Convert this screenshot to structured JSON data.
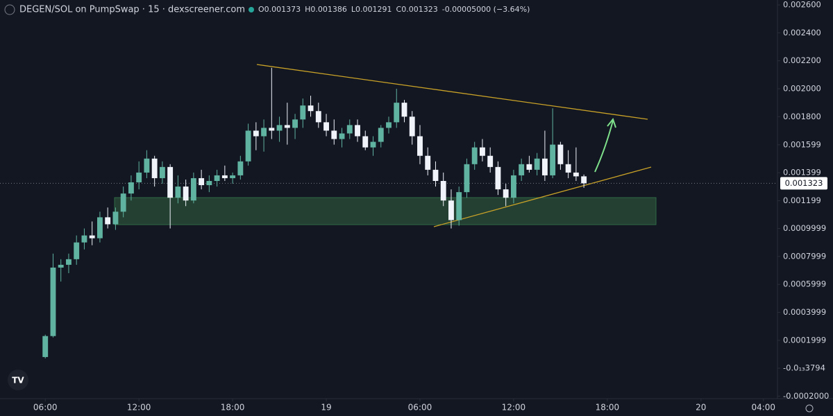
{
  "chart_data": {
    "type": "candlestick",
    "title": "DEGEN/SOL on PumpSwap · 15 · dexscreener.com",
    "ohlc_text": [
      "O0.001373",
      "H0.001386",
      "L0.001291",
      "C0.001323",
      "-0.00005000 (−3.64%)"
    ],
    "up_color": "#5fb3a0",
    "down_color": "#f0f3fa",
    "last_price": 0.001323,
    "xlim": [
      3.1,
      52.9
    ],
    "xticks": [
      {
        "value": 6,
        "label": "06:00"
      },
      {
        "value": 12,
        "label": "12:00"
      },
      {
        "value": 18,
        "label": "18:00"
      },
      {
        "value": 24,
        "label": "19"
      },
      {
        "value": 30,
        "label": "06:00"
      },
      {
        "value": 36,
        "label": "12:00"
      },
      {
        "value": 42,
        "label": "18:00"
      },
      {
        "value": 48,
        "label": "20"
      },
      {
        "value": 52,
        "label": "04:00"
      }
    ],
    "ylim": [
      -0.000218,
      0.002635
    ],
    "yticks": [
      {
        "value": 0.0026,
        "label": "0.002600"
      },
      {
        "value": 0.0024,
        "label": "0.002400"
      },
      {
        "value": 0.0022,
        "label": "0.002200"
      },
      {
        "value": 0.002,
        "label": "0.002000"
      },
      {
        "value": 0.0018,
        "label": "0.001800"
      },
      {
        "value": 0.001599,
        "label": "0.001599"
      },
      {
        "value": 0.001399,
        "label": "0.001399"
      },
      {
        "value": 0.001199,
        "label": "0.001199"
      },
      {
        "value": 0.0009999,
        "label": "0.0009999"
      },
      {
        "value": 0.0007999,
        "label": "0.0007999"
      },
      {
        "value": 0.0005999,
        "label": "0.0005999"
      },
      {
        "value": 0.0003999,
        "label": "0.0003999"
      },
      {
        "value": 0.0001999,
        "label": "0.0001999"
      },
      {
        "value": -3.794e-14,
        "label": "-0.0₁₃3794"
      },
      {
        "value": -0.0002,
        "label": "-0.0002000"
      }
    ],
    "x": [
      6,
      6.5,
      7,
      7.5,
      8,
      8.5,
      9,
      9.5,
      10,
      10.5,
      11,
      11.5,
      12,
      12.5,
      13,
      13.5,
      14,
      14.5,
      15,
      15.5,
      16,
      16.5,
      17,
      17.5,
      18,
      18.5,
      19,
      19.5,
      20,
      20.5,
      21,
      21.5,
      22,
      22.5,
      23,
      23.5,
      24,
      24.5,
      25,
      25.5,
      26,
      26.5,
      27,
      27.5,
      28,
      28.5,
      29,
      29.5,
      30,
      30.5,
      31,
      31.5,
      32,
      32.5,
      33,
      33.5,
      34,
      34.5,
      35,
      35.5,
      36,
      36.5,
      37,
      37.5,
      38,
      38.5,
      39,
      39.5,
      40,
      40.5
    ],
    "open": [
      8e-05,
      0.00023,
      0.00072,
      0.00074,
      0.00078,
      0.0009,
      0.00095,
      0.00093,
      0.00108,
      0.00103,
      0.00112,
      0.00125,
      0.00133,
      0.0014,
      0.0015,
      0.00136,
      0.00144,
      0.00122,
      0.0013,
      0.0012,
      0.00136,
      0.00131,
      0.00134,
      0.00138,
      0.00136,
      0.00138,
      0.00148,
      0.0017,
      0.00166,
      0.00172,
      0.0017,
      0.00174,
      0.00172,
      0.00178,
      0.00188,
      0.00184,
      0.00176,
      0.0017,
      0.00164,
      0.00168,
      0.00174,
      0.00166,
      0.00158,
      0.00162,
      0.00172,
      0.00176,
      0.0019,
      0.0018,
      0.00166,
      0.00152,
      0.00142,
      0.00134,
      0.0012,
      0.00106,
      0.00126,
      0.00146,
      0.00158,
      0.00152,
      0.00144,
      0.00128,
      0.00122,
      0.00138,
      0.00146,
      0.00142,
      0.0015,
      0.00138,
      0.0016,
      0.00146,
      0.0014,
      0.001373
    ],
    "high": [
      0.00024,
      0.00082,
      0.00078,
      0.00082,
      0.00095,
      0.001,
      0.00105,
      0.00112,
      0.00115,
      0.00115,
      0.0013,
      0.00138,
      0.00148,
      0.00156,
      0.00152,
      0.00148,
      0.00146,
      0.00138,
      0.00135,
      0.0014,
      0.00142,
      0.00138,
      0.00142,
      0.00145,
      0.0014,
      0.00152,
      0.00175,
      0.00176,
      0.00178,
      0.00215,
      0.0018,
      0.0019,
      0.00182,
      0.00193,
      0.00195,
      0.0019,
      0.00182,
      0.00178,
      0.00172,
      0.00178,
      0.00178,
      0.0017,
      0.00166,
      0.00174,
      0.0018,
      0.002,
      0.00192,
      0.00184,
      0.00174,
      0.00158,
      0.00148,
      0.0014,
      0.00128,
      0.0013,
      0.0015,
      0.00162,
      0.00164,
      0.00158,
      0.00148,
      0.00132,
      0.00142,
      0.0015,
      0.00152,
      0.00154,
      0.0017,
      0.00186,
      0.00162,
      0.00156,
      0.00158,
      0.001386
    ],
    "low": [
      7e-05,
      0.00022,
      0.00062,
      0.00068,
      0.00074,
      0.00085,
      0.00088,
      0.0009,
      0.001,
      0.00099,
      0.00108,
      0.0012,
      0.00128,
      0.00136,
      0.0013,
      0.00132,
      0.001,
      0.00118,
      0.00116,
      0.00118,
      0.00128,
      0.00126,
      0.0013,
      0.00134,
      0.00132,
      0.00135,
      0.00145,
      0.00156,
      0.00155,
      0.00164,
      0.00162,
      0.0016,
      0.00164,
      0.00172,
      0.0018,
      0.00172,
      0.00166,
      0.0016,
      0.00158,
      0.00164,
      0.00162,
      0.00156,
      0.00152,
      0.00158,
      0.00168,
      0.00172,
      0.00176,
      0.0016,
      0.00146,
      0.00138,
      0.0013,
      0.00116,
      0.001,
      0.00102,
      0.00122,
      0.00142,
      0.00148,
      0.0014,
      0.00124,
      0.00116,
      0.00118,
      0.00134,
      0.0014,
      0.00138,
      0.00134,
      0.00136,
      0.00142,
      0.00136,
      0.00134,
      0.001291
    ],
    "close": [
      0.00023,
      0.00072,
      0.00074,
      0.00078,
      0.0009,
      0.00095,
      0.00093,
      0.00108,
      0.00103,
      0.00112,
      0.00125,
      0.00133,
      0.0014,
      0.0015,
      0.00136,
      0.00144,
      0.00122,
      0.0013,
      0.0012,
      0.00136,
      0.00131,
      0.00134,
      0.00138,
      0.00136,
      0.00138,
      0.00148,
      0.0017,
      0.00166,
      0.00172,
      0.0017,
      0.00174,
      0.00172,
      0.00178,
      0.00188,
      0.00184,
      0.00176,
      0.0017,
      0.00164,
      0.00168,
      0.00174,
      0.00166,
      0.00158,
      0.00162,
      0.00172,
      0.00176,
      0.0019,
      0.0018,
      0.00166,
      0.00152,
      0.00142,
      0.00134,
      0.0012,
      0.00106,
      0.00126,
      0.00146,
      0.00158,
      0.00152,
      0.00144,
      0.00128,
      0.00122,
      0.00138,
      0.00146,
      0.00142,
      0.0015,
      0.00138,
      0.0016,
      0.00146,
      0.0014,
      0.001373,
      0.001323
    ]
  }
}
